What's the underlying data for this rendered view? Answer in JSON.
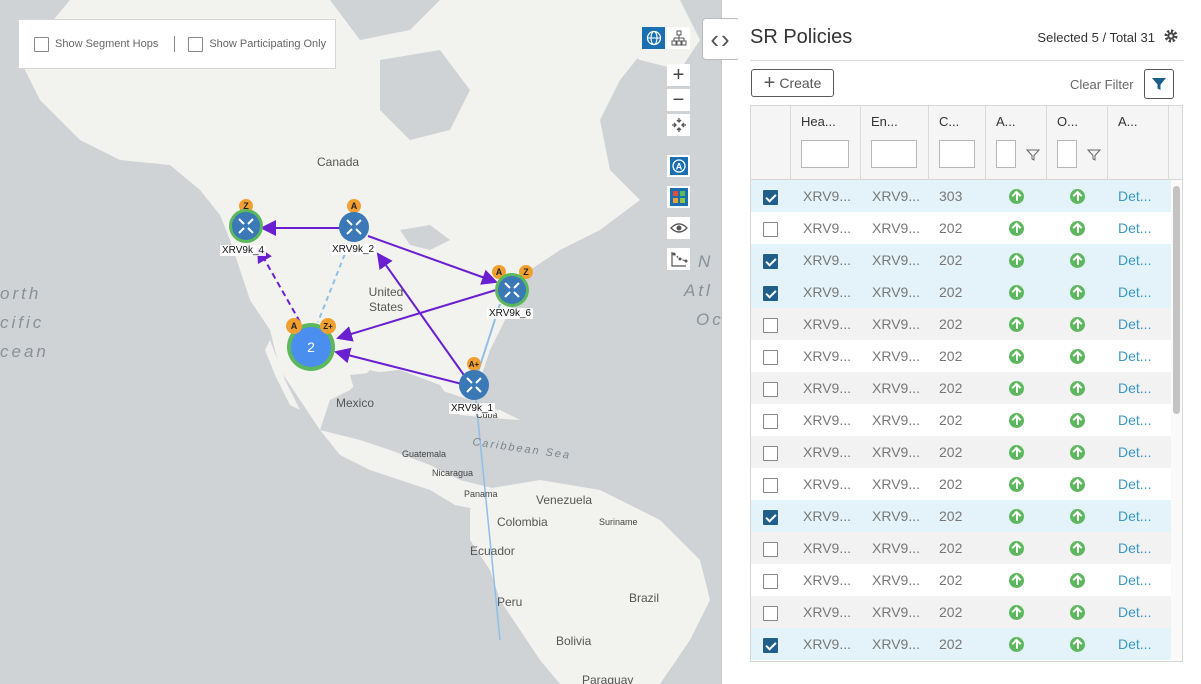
{
  "map": {
    "show_segment_hops_label": "Show Segment Hops",
    "show_participating_label": "Show Participating Only",
    "country_labels": {
      "canada": "Canada",
      "united_states": "United\nStates",
      "mexico": "Mexico",
      "cuba": "Cuba",
      "guatemala": "Guatemala",
      "nicaragua": "Nicaragua",
      "panama": "Panama",
      "venezuela": "Venezuela",
      "colombia": "Colombia",
      "suriname": "Suriname",
      "ecuador": "Ecuador",
      "peru": "Peru",
      "brazil": "Brazil",
      "bolivia": "Bolivia",
      "paraguay": "Paraguay"
    },
    "ocean_labels": {
      "pacific_1": "orth",
      "pacific_2": "cific",
      "pacific_3": "cean",
      "atlantic_1": "N",
      "atlantic_2": "Atl",
      "atlantic_3": "Oc",
      "caribbean": "Caribbean Sea"
    },
    "nodes": {
      "xrv4": {
        "label": "XRV9k_4",
        "badge": "Z"
      },
      "xrv2": {
        "label": "XRV9k_2",
        "badge": "A"
      },
      "xrv6": {
        "label": "XRV9k_6",
        "badge_a": "A",
        "badge_z": "Z"
      },
      "xrv1": {
        "label": "XRV9k_1",
        "badge": "A+"
      },
      "cluster": {
        "count": "2",
        "badge_a": "A",
        "badge_z": "Z+"
      }
    },
    "toolbar": {
      "zoom_in": "+",
      "zoom_out": "−"
    }
  },
  "panel": {
    "title": "SR Policies",
    "selection": "Selected 5 / Total 31",
    "create_label": "Create",
    "clear_filter_label": "Clear Filter",
    "columns": [
      "Hea...",
      "En...",
      "C...",
      "A...",
      "O...",
      "A..."
    ],
    "rows": [
      {
        "checked": true,
        "head": "XRV9...",
        "end": "XRV9...",
        "color": "303",
        "detail": "Det..."
      },
      {
        "checked": false,
        "head": "XRV9...",
        "end": "XRV9...",
        "color": "202",
        "detail": "Det..."
      },
      {
        "checked": true,
        "head": "XRV9...",
        "end": "XRV9...",
        "color": "202",
        "detail": "Det..."
      },
      {
        "checked": true,
        "head": "XRV9...",
        "end": "XRV9...",
        "color": "202",
        "detail": "Det..."
      },
      {
        "checked": false,
        "head": "XRV9...",
        "end": "XRV9...",
        "color": "202",
        "detail": "Det..."
      },
      {
        "checked": false,
        "head": "XRV9...",
        "end": "XRV9...",
        "color": "202",
        "detail": "Det..."
      },
      {
        "checked": false,
        "head": "XRV9...",
        "end": "XRV9...",
        "color": "202",
        "detail": "Det..."
      },
      {
        "checked": false,
        "head": "XRV9...",
        "end": "XRV9...",
        "color": "202",
        "detail": "Det..."
      },
      {
        "checked": false,
        "head": "XRV9...",
        "end": "XRV9...",
        "color": "202",
        "detail": "Det..."
      },
      {
        "checked": false,
        "head": "XRV9...",
        "end": "XRV9...",
        "color": "202",
        "detail": "Det..."
      },
      {
        "checked": true,
        "head": "XRV9...",
        "end": "XRV9...",
        "color": "202",
        "detail": "Det..."
      },
      {
        "checked": false,
        "head": "XRV9...",
        "end": "XRV9...",
        "color": "202",
        "detail": "Det..."
      },
      {
        "checked": false,
        "head": "XRV9...",
        "end": "XRV9...",
        "color": "202",
        "detail": "Det..."
      },
      {
        "checked": false,
        "head": "XRV9...",
        "end": "XRV9...",
        "color": "202",
        "detail": "Det..."
      },
      {
        "checked": true,
        "head": "XRV9...",
        "end": "XRV9...",
        "color": "202",
        "detail": "Det..."
      }
    ]
  },
  "colors": {
    "node_blue": "#3a79b5",
    "node_ring": "#5cb85c",
    "badge_orange": "#f0a030",
    "link_purple": "#6a1fd0",
    "link_light": "#8fbfe8",
    "status_green": "#5cb85c",
    "detail_link": "#3a98c7"
  },
  "icons": {
    "globe": "globe-icon",
    "topology": "topology-icon",
    "fit": "fit-to-screen-icon",
    "layers": "layers-icon",
    "legend": "legend-icon",
    "eye": "eye-icon",
    "path": "path-icon",
    "gear": "gear-icon",
    "filter": "filter-icon"
  }
}
